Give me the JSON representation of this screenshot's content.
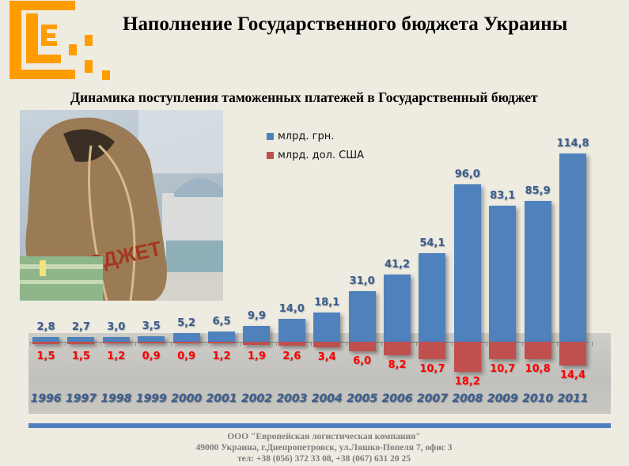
{
  "header": {
    "title": "Наполнение Государственного бюджета Украины",
    "subtitle": "Динамика поступления таможенных платежей в Государственный бюджет",
    "logo": "ELC-logo-orange-blocks"
  },
  "photo": {
    "description": "money bag labeled БЮДЖЕТ with banknotes",
    "bag_label": "БЮДЖЕТ"
  },
  "legend": {
    "items": [
      {
        "label": "млрд. грн.",
        "color": "#4f81bd"
      },
      {
        "label": "млрд. дол. США",
        "color": "#c0504d"
      }
    ]
  },
  "colors": {
    "uah": "#4f81bd",
    "usd": "#c0504d",
    "uah_label": "#3a5d8f",
    "usd_label": "#ff0000",
    "year_label": "#3c5f92",
    "logo": "#ff9c00",
    "footer_bar": "#4f7fbe"
  },
  "chart_data": {
    "type": "bar",
    "title": "Динамика поступления таможенных платежей в Государственный бюджет",
    "xlabel": "",
    "ylabel": "",
    "grid": false,
    "legend_position": "top-right-inset",
    "categories": [
      "1996",
      "1997",
      "1998",
      "1999",
      "2000",
      "2001",
      "2002",
      "2003",
      "2004",
      "2005",
      "2006",
      "2007",
      "2008",
      "2009",
      "2010",
      "2011"
    ],
    "series": [
      {
        "name": "млрд. грн.",
        "direction": "up",
        "values": [
          2.8,
          2.7,
          3.0,
          3.5,
          5.2,
          6.5,
          9.9,
          14.0,
          18.1,
          31.0,
          41.2,
          54.1,
          96.0,
          83.1,
          85.9,
          114.8
        ],
        "labels": [
          "2,8",
          "2,7",
          "3,0",
          "3,5",
          "5,2",
          "6,5",
          "9,9",
          "14,0",
          "18,1",
          "31,0",
          "41,2",
          "54,1",
          "96,0",
          "83,1",
          "85,9",
          "114,8"
        ]
      },
      {
        "name": "млрд. дол. США",
        "direction": "down",
        "values": [
          1.5,
          1.5,
          1.2,
          0.9,
          0.9,
          1.2,
          1.9,
          2.6,
          3.4,
          6.0,
          8.2,
          10.7,
          18.2,
          10.7,
          10.8,
          14.4
        ],
        "labels": [
          "1,5",
          "1,5",
          "1,2",
          "0,9",
          "0,9",
          "1,2",
          "1,9",
          "2,6",
          "3,4",
          "6,0",
          "8,2",
          "10,7",
          "18,2",
          "10,7",
          "10,8",
          "14,4"
        ]
      }
    ]
  },
  "footer": {
    "company": "ООО \"Европейская логистическая компания\"",
    "address": "49000 Украина, г.Днепропетровск, ул.Ляшко-Попеля 7, офис 3",
    "phone": "тел: +38 (056) 372 33 08, +38 (067) 631 20 25"
  }
}
